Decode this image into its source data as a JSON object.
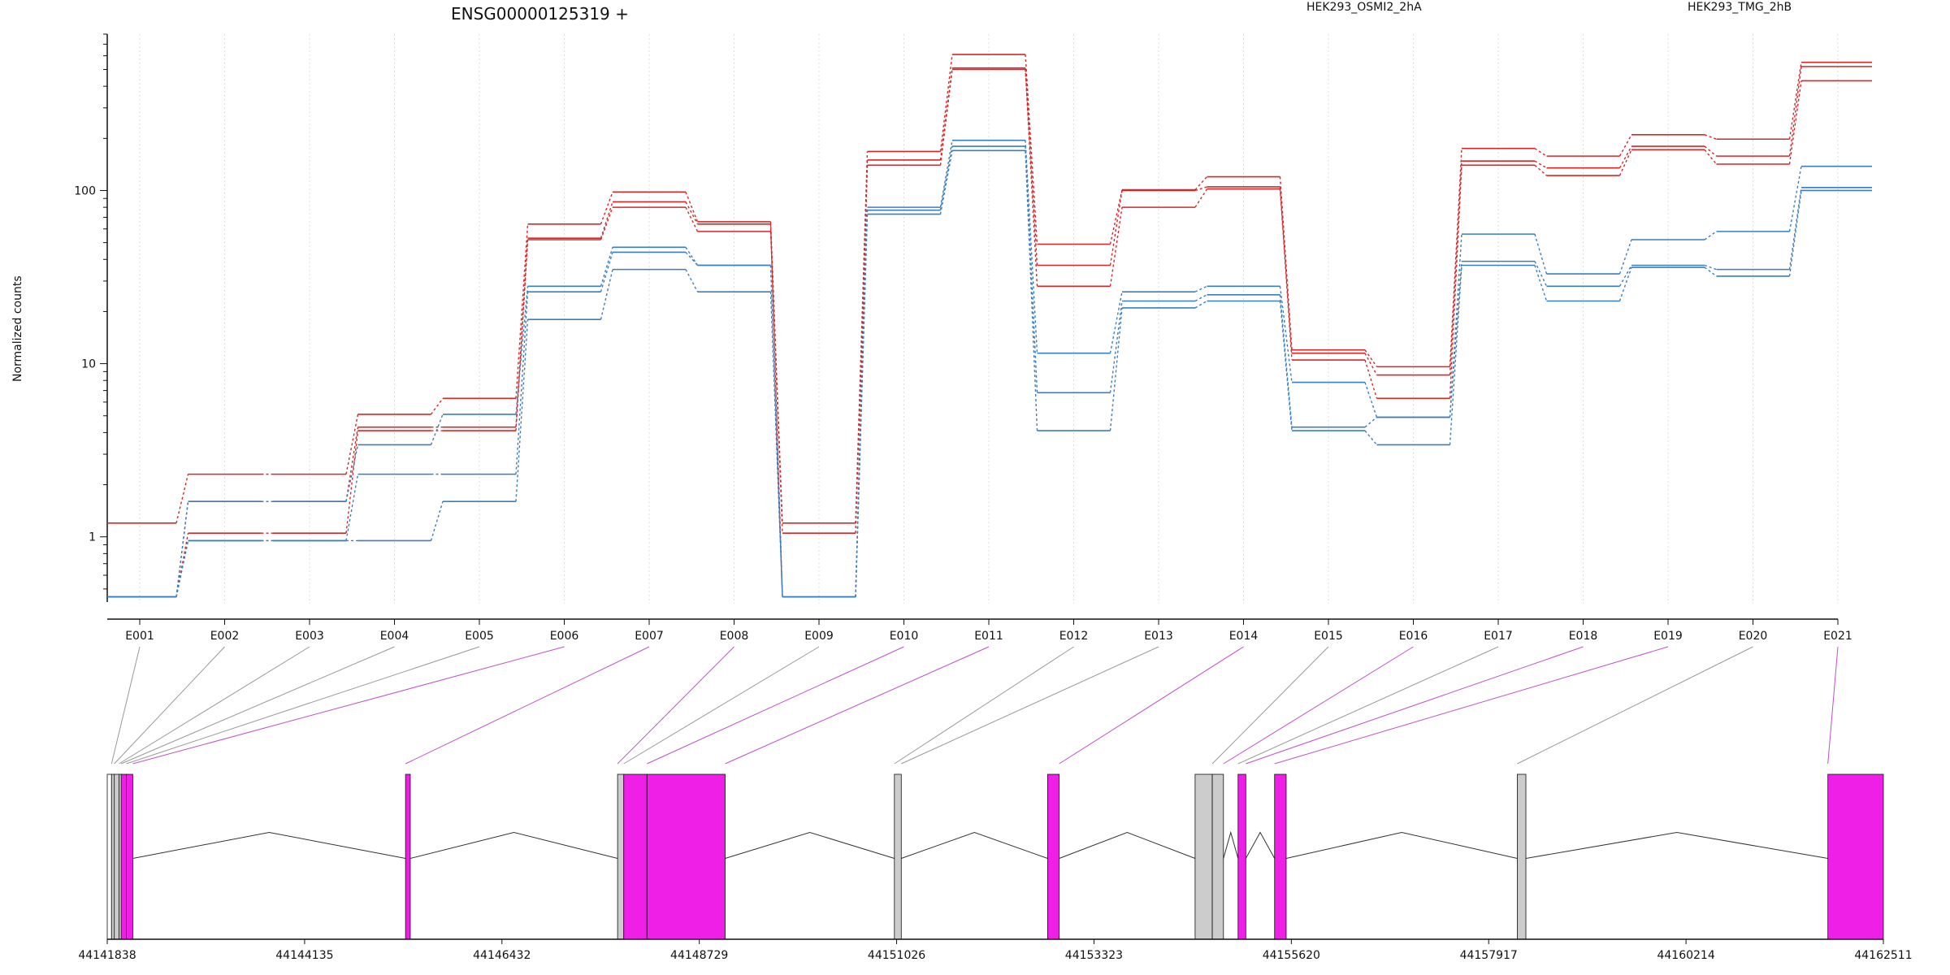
{
  "title": "ENSG00000125319 +",
  "ylabel": "Normalized counts",
  "legend": [
    {
      "label": "HEK293_OSMI2_2hA",
      "color": "#d62728"
    },
    {
      "label": "HEK293_TMG_2hB",
      "color": "#3a7ebf"
    }
  ],
  "y_ticks": [
    "1",
    "10",
    "100"
  ],
  "chart_data": {
    "type": "line",
    "title": "ENSG00000125319 +",
    "ylabel": "Normalized counts",
    "y_scale": "log",
    "ylim": [
      0.42,
      800
    ],
    "categories": [
      "E001",
      "E002",
      "E003",
      "E004",
      "E005",
      "E006",
      "E007",
      "E008",
      "E009",
      "E010",
      "E011",
      "E012",
      "E013",
      "E014",
      "E015",
      "E016",
      "E017",
      "E018",
      "E019",
      "E020",
      "E021"
    ],
    "grid": "vertical dotted",
    "legend_position": "top",
    "series": [
      {
        "name": "HEK293_OSMI2_2hA",
        "color": "#d62728",
        "values": [
          1.2,
          2.3,
          2.3,
          5.1,
          6.3,
          64,
          98,
          66,
          1.2,
          168,
          610,
          49,
          101,
          120,
          12,
          9.6,
          175,
          158,
          210,
          198,
          550
        ]
      },
      {
        "name": "HEK293_OSMI2_2hA",
        "color": "#d62728",
        "values": [
          0.45,
          1.6,
          1.6,
          4.3,
          4.3,
          53,
          86,
          64,
          0.45,
          150,
          510,
          37,
          100,
          105,
          11.5,
          8.6,
          148,
          135,
          180,
          158,
          520
        ]
      },
      {
        "name": "HEK293_OSMI2_2hA",
        "color": "#d62728",
        "values": [
          0.45,
          1.05,
          1.05,
          4.1,
          4.1,
          52,
          80,
          58,
          1.05,
          140,
          500,
          28,
          80,
          102,
          10.5,
          6.3,
          140,
          122,
          172,
          142,
          430
        ]
      },
      {
        "name": "HEK293_TMG_2hB",
        "color": "#3a7ebf",
        "values": [
          0.45,
          1.6,
          1.6,
          3.4,
          5.1,
          28,
          47,
          37,
          0.45,
          80,
          195,
          11.5,
          26,
          28,
          7.8,
          4.9,
          56,
          33,
          52,
          58,
          138
        ]
      },
      {
        "name": "HEK293_TMG_2hB",
        "color": "#3a7ebf",
        "values": [
          0.45,
          0.95,
          0.95,
          2.3,
          2.3,
          26,
          44,
          37,
          0.45,
          77,
          180,
          6.8,
          23,
          25,
          4.3,
          4.9,
          39,
          28,
          37,
          35,
          104
        ]
      },
      {
        "name": "HEK293_TMG_2hB",
        "color": "#3a7ebf",
        "values": [
          0.45,
          0.95,
          0.95,
          0.95,
          1.6,
          18,
          35,
          26,
          0.45,
          73,
          170,
          4.1,
          21,
          23,
          4.1,
          3.4,
          37,
          23,
          36,
          32,
          100
        ]
      }
    ]
  },
  "exon_fill": {
    "E001": "#cccccc",
    "E002": "#cccccc",
    "E003": "#cccccc",
    "E004": "#cccccc",
    "E005": "#cccccc",
    "E006": "#f01fe8",
    "E007": "#f01fe8",
    "E008": "#f01fe8",
    "E009": "#cccccc",
    "E010": "#f01fe8",
    "E011": "#f01fe8",
    "E012": "#cccccc",
    "E013": "#cccccc",
    "E014": "#f01fe8",
    "E015": "#cccccc",
    "E016": "#f01fe8",
    "E017": "#cccccc",
    "E018": "#f01fe8",
    "E019": "#f01fe8",
    "E020": "#cccccc",
    "E021": "#f01fe8"
  },
  "genome": {
    "range": [
      44141838,
      44162511
    ],
    "ticks": [
      "44141838",
      "44144135",
      "44146432",
      "44148729",
      "44151026",
      "44153323",
      "44155620",
      "44157917",
      "44160214",
      "44162511"
    ],
    "exons": [
      {
        "start": 44141838,
        "end": 44141888,
        "fill": "#ffffff"
      },
      {
        "start": 44141888,
        "end": 44141920,
        "fill": "#cccccc"
      },
      {
        "start": 44141920,
        "end": 44141975,
        "fill": "#cccccc"
      },
      {
        "start": 44141975,
        "end": 44142000,
        "fill": "#cccccc"
      },
      {
        "start": 44142000,
        "end": 44142060,
        "fill": "#f01fe8"
      },
      {
        "start": 44142060,
        "end": 44142135,
        "fill": "#f01fe8"
      },
      {
        "start": 44145310,
        "end": 44145365,
        "fill": "#f01fe8"
      },
      {
        "start": 44147778,
        "end": 44147850,
        "fill": "#cccccc"
      },
      {
        "start": 44147850,
        "end": 44148120,
        "fill": "#f01fe8"
      },
      {
        "start": 44148120,
        "end": 44149030,
        "fill": "#f01fe8"
      },
      {
        "start": 44151000,
        "end": 44151080,
        "fill": "#cccccc"
      },
      {
        "start": 44152783,
        "end": 44152918,
        "fill": "#f01fe8"
      },
      {
        "start": 44154500,
        "end": 44154700,
        "fill": "#cccccc"
      },
      {
        "start": 44154700,
        "end": 44154830,
        "fill": "#cccccc"
      },
      {
        "start": 44155000,
        "end": 44155090,
        "fill": "#f01fe8"
      },
      {
        "start": 44155425,
        "end": 44155560,
        "fill": "#f01fe8"
      },
      {
        "start": 44158250,
        "end": 44158350,
        "fill": "#cccccc"
      },
      {
        "start": 44161865,
        "end": 44162511,
        "fill": "#f01fe8"
      }
    ],
    "connector_targets": [
      44141888,
      44141920,
      44141975,
      44142000,
      44142060,
      44142135,
      44145310,
      44147778,
      44147850,
      44148120,
      44149030,
      44151000,
      44151080,
      44152918,
      44154700,
      44154830,
      44155000,
      44155090,
      44155425,
      44158250,
      44161865
    ]
  }
}
